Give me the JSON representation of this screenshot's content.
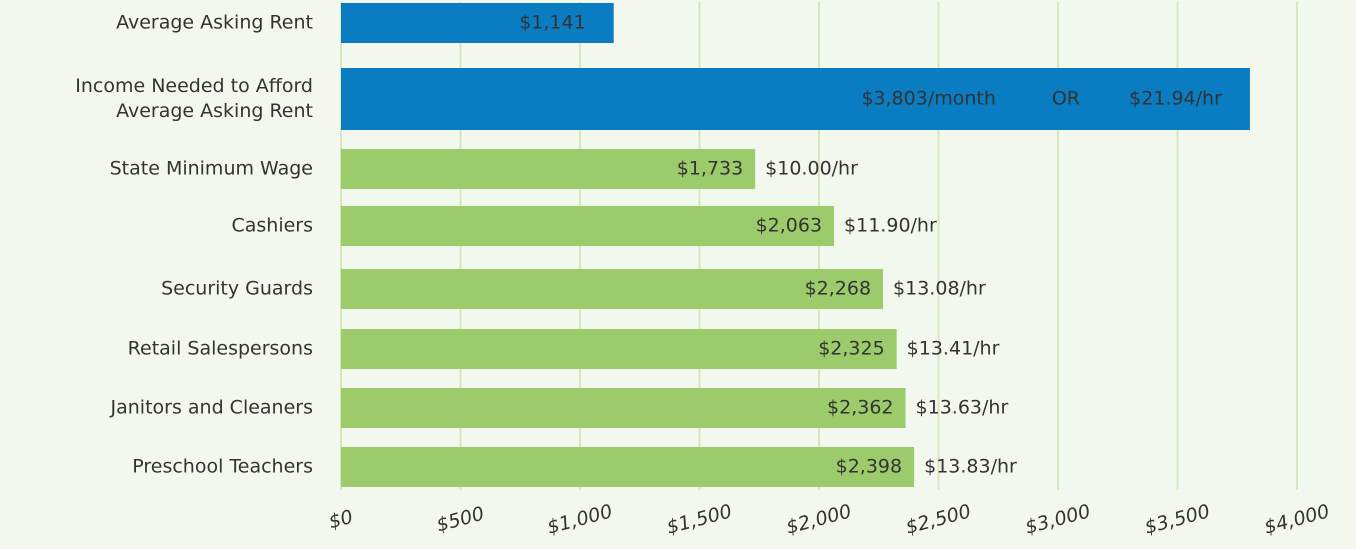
{
  "chart_data": {
    "type": "bar",
    "orientation": "horizontal",
    "categories": [
      "Average Asking Rent",
      "Income Needed to Afford\nAverage Asking Rent",
      "State Minimum Wage",
      "Cashiers",
      "Security Guards",
      "Retail Salespersons",
      "Janitors and Cleaners",
      "Preschool Teachers"
    ],
    "values": [
      1141,
      3803,
      1733,
      2063,
      2268,
      2325,
      2362,
      2398
    ],
    "value_labels": [
      "$1,141",
      "$3,803/month",
      "$1,733",
      "$2,063",
      "$2,268",
      "$2,325",
      "$2,362",
      "$2,398"
    ],
    "colors": [
      "#0a7cc2",
      "#0a7cc2",
      "#9ccb6b",
      "#9ccb6b",
      "#9ccb6b",
      "#9ccb6b",
      "#9ccb6b",
      "#9ccb6b"
    ],
    "hourly_rates": [
      null,
      21.94,
      10.0,
      11.9,
      13.08,
      13.41,
      13.63,
      13.83
    ],
    "hourly_rate_labels": [
      null,
      "$21.94/hr",
      "$10.00/hr",
      "$11.90/hr",
      "$13.08/hr",
      "$13.41/hr",
      "$13.63/hr",
      "$13.83/hr"
    ],
    "or_label": "OR",
    "xlim": [
      0,
      4000
    ],
    "xticks": [
      {
        "value": 0,
        "label": "$0"
      },
      {
        "value": 500,
        "label": "$500"
      },
      {
        "value": 1000,
        "label": "$1,000"
      },
      {
        "value": 1500,
        "label": "$1,500"
      },
      {
        "value": 2000,
        "label": "$2,000"
      },
      {
        "value": 2500,
        "label": "$2,500"
      },
      {
        "value": 3000,
        "label": "$3,000"
      },
      {
        "value": 3500,
        "label": "$3,500"
      },
      {
        "value": 4000,
        "label": "$4,000"
      }
    ],
    "grid": true
  }
}
